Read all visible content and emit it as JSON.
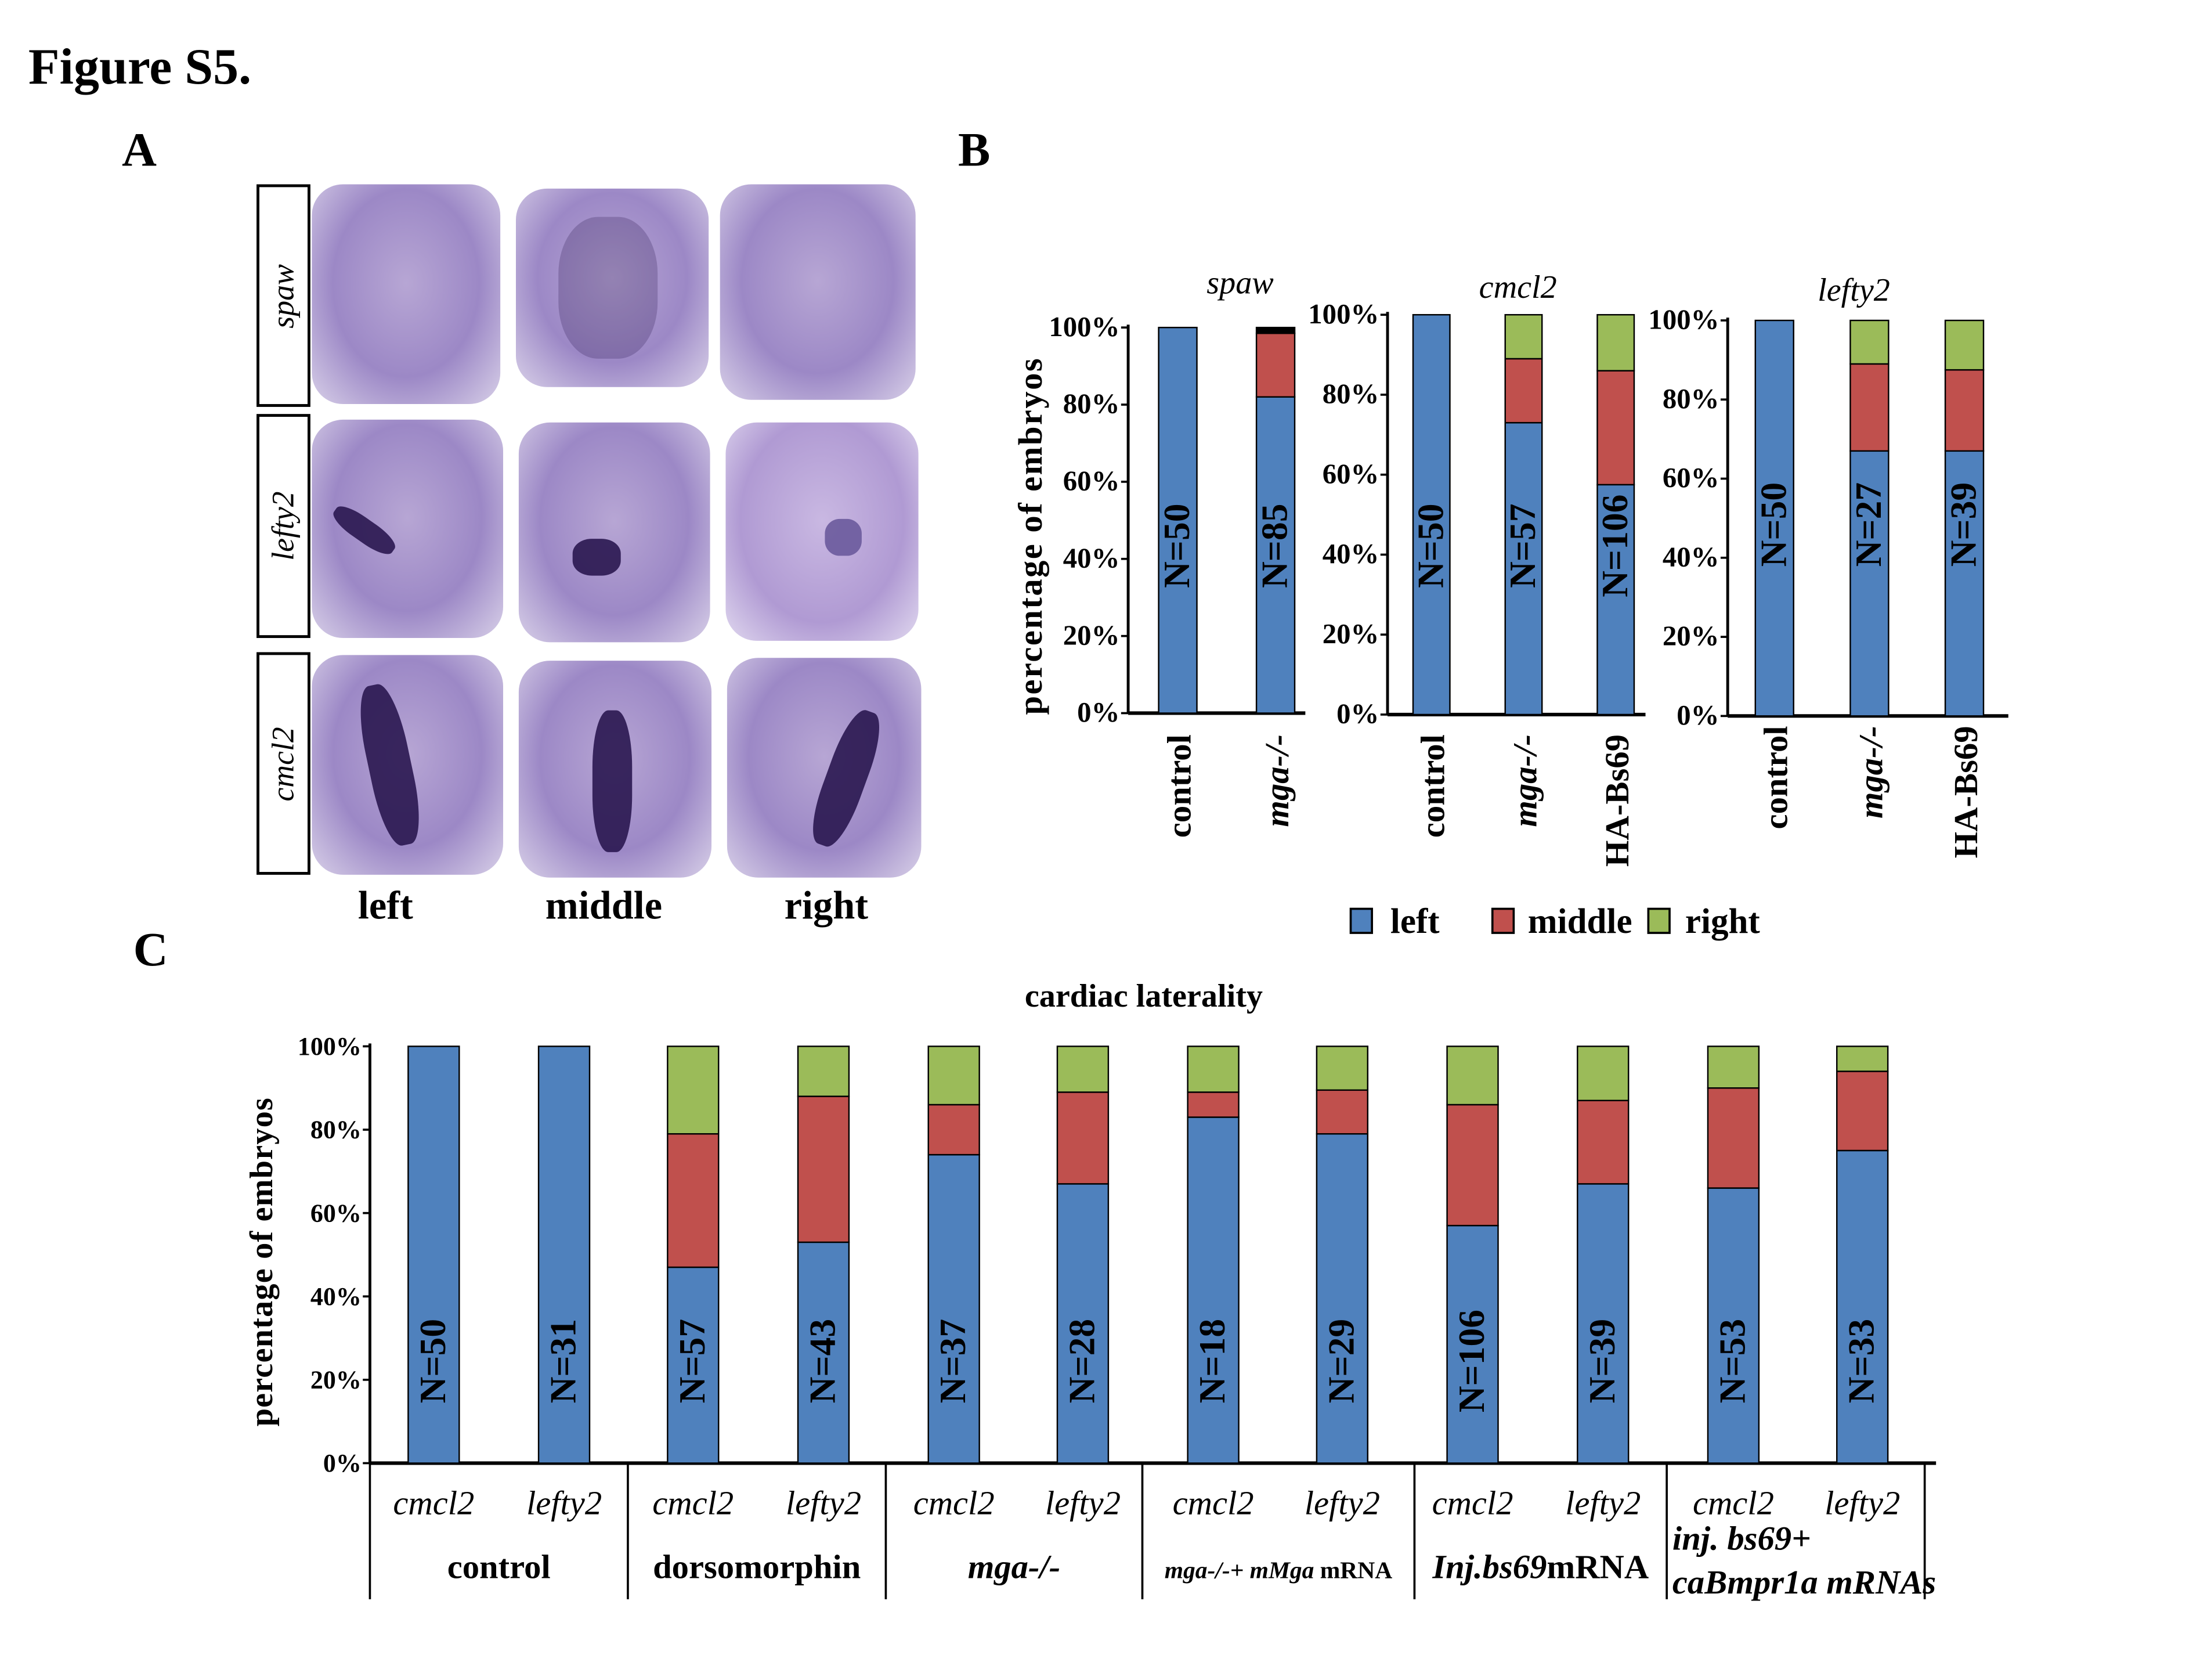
{
  "figure_title": "Figure S5.",
  "panels": {
    "a": "A",
    "b": "B",
    "c": "C"
  },
  "panel_a": {
    "rows": [
      "spaw",
      "lefty2",
      "cmcl2"
    ],
    "columns": [
      "left",
      "middle",
      "right"
    ]
  },
  "legend": [
    {
      "label": "left",
      "color": "#4f81bd"
    },
    {
      "label": "middle",
      "color": "#c0504d"
    },
    {
      "label": "right",
      "color": "#9bbb59"
    }
  ],
  "chart_data": [
    {
      "id": "spaw",
      "type": "bar",
      "stacked": true,
      "title": "spaw",
      "ylabel": "percentage of embryos",
      "ylim": [
        0,
        100
      ],
      "yticks": [
        "0%",
        "20%",
        "40%",
        "60%",
        "80%",
        "100%"
      ],
      "categories": [
        {
          "label": "control",
          "italic": false
        },
        {
          "label": "mga-/-",
          "italic": true
        }
      ],
      "n_labels": [
        "N=50",
        "N=85"
      ],
      "series": [
        {
          "name": "left",
          "values": [
            100,
            82
          ]
        },
        {
          "name": "middle",
          "values": [
            0,
            16.5
          ]
        },
        {
          "name": "right",
          "values": [
            0,
            1.5
          ]
        }
      ]
    },
    {
      "id": "cmcl2",
      "type": "bar",
      "stacked": true,
      "title": "cmcl2",
      "ylim": [
        0,
        100
      ],
      "yticks": [
        "0%",
        "20%",
        "40%",
        "60%",
        "80%",
        "100%"
      ],
      "categories": [
        {
          "label": "control",
          "italic": false
        },
        {
          "label": "mga-/-",
          "italic": true
        },
        {
          "label": "HA-Bs69",
          "italic": false
        }
      ],
      "n_labels": [
        "N=50",
        "N=57",
        "N=106"
      ],
      "series": [
        {
          "name": "left",
          "values": [
            100,
            73,
            57.5
          ]
        },
        {
          "name": "middle",
          "values": [
            0,
            16,
            28.5
          ]
        },
        {
          "name": "right",
          "values": [
            0,
            11,
            14
          ]
        }
      ]
    },
    {
      "id": "lefty2",
      "type": "bar",
      "stacked": true,
      "title": "lefty2",
      "ylim": [
        0,
        100
      ],
      "yticks": [
        "0%",
        "20%",
        "40%",
        "60%",
        "80%",
        "100%"
      ],
      "categories": [
        {
          "label": "control",
          "italic": false
        },
        {
          "label": "mga-/-",
          "italic": true
        },
        {
          "label": "HA-Bs69",
          "italic": false
        }
      ],
      "n_labels": [
        "N=50",
        "N=27",
        "N=39"
      ],
      "series": [
        {
          "name": "left",
          "values": [
            100,
            67,
            67
          ]
        },
        {
          "name": "middle",
          "values": [
            0,
            22,
            20.5
          ]
        },
        {
          "name": "right",
          "values": [
            0,
            11,
            12.5
          ]
        }
      ]
    },
    {
      "id": "cardiac",
      "type": "bar",
      "stacked": true,
      "title": "cardiac laterality",
      "ylabel": "percentage of embryos",
      "ylim": [
        0,
        100
      ],
      "yticks": [
        "0%",
        "20%",
        "40%",
        "60%",
        "80%",
        "100%"
      ],
      "categories": [
        "cmcl2",
        "lefty2",
        "cmcl2",
        "lefty2",
        "cmcl2",
        "lefty2",
        "cmcl2",
        "lefty2",
        "cmcl2",
        "lefty2",
        "cmcl2",
        "lefty2"
      ],
      "n_labels": [
        "N=50",
        "N=31",
        "N=57",
        "N=43",
        "N=37",
        "N=28",
        "N=18",
        "N=29",
        "N=106",
        "N=39",
        "N=53",
        "N=33"
      ],
      "groups": [
        [
          [
            {
              "t": "control",
              "i": false
            }
          ]
        ],
        [
          [
            {
              "t": "dorsomorphin",
              "i": false
            }
          ]
        ],
        [
          [
            {
              "t": "mga-/-",
              "i": true
            }
          ]
        ],
        [
          [
            {
              "t": "mga-/-+ mMga",
              "i": true,
              "small": true
            },
            {
              "t": " mRNA",
              "i": false,
              "small": true
            }
          ]
        ],
        [
          [
            {
              "t": "Inj.bs69",
              "i": true
            },
            {
              "t": "mRNA",
              "i": false
            }
          ]
        ],
        [
          [
            {
              "t": "inj. bs69+",
              "i": true
            }
          ],
          [
            {
              "t": "caBmpr1a",
              "i": true
            },
            {
              "t": " mRNAs",
              "i": true
            }
          ]
        ]
      ],
      "series": [
        {
          "name": "left",
          "values": [
            100,
            100,
            47,
            53,
            74,
            67,
            83,
            79,
            57,
            67,
            66,
            75
          ]
        },
        {
          "name": "middle",
          "values": [
            0,
            0,
            32,
            35,
            12,
            22,
            6,
            10.5,
            29,
            20,
            24,
            19
          ]
        },
        {
          "name": "right",
          "values": [
            0,
            0,
            21,
            12,
            14,
            11,
            11,
            10.5,
            14,
            13,
            10,
            6
          ]
        }
      ]
    }
  ]
}
